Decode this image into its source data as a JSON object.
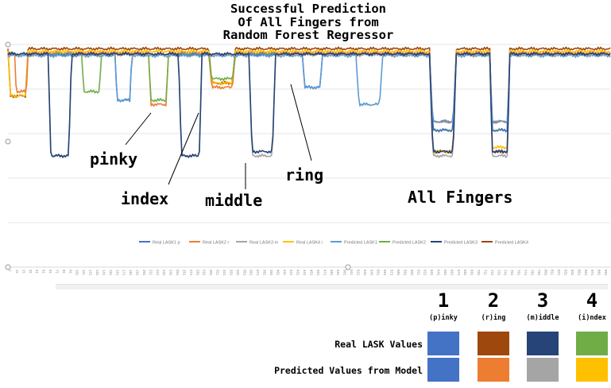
{
  "title_lines": [
    "Successful Prediction",
    "Of All Fingers from",
    "Random Forest Regressor"
  ],
  "annotations": {
    "pinky": "pinky",
    "index": "index",
    "middle": "middle",
    "ring": "ring",
    "all": "All Fingers"
  },
  "legend_table": {
    "columns": [
      {
        "num": "1",
        "sub": "(p)inky",
        "real": "#4472c4",
        "pred": "#4472c4"
      },
      {
        "num": "2",
        "sub": "(r)ing",
        "real": "#9e480e",
        "pred": "#ed7d31"
      },
      {
        "num": "3",
        "sub": "(m)iddle",
        "real": "#264478",
        "pred": "#a5a5a5"
      },
      {
        "num": "4",
        "sub": "(i)ndex",
        "real": "#70ad47",
        "pred": "#ffc000"
      }
    ],
    "row_real": "Real LASK Values",
    "row_pred": "Predicted Values from Model"
  },
  "chart_data": {
    "type": "line",
    "x_count": 901,
    "ylim": [
      0,
      260
    ],
    "grid": true,
    "legend_position": "bottom",
    "legend": [
      {
        "name": "Real LASK1 p",
        "color": "#4472c4"
      },
      {
        "name": "Real LASK2 r",
        "color": "#ed7d31"
      },
      {
        "name": "Real LASK3 m",
        "color": "#a5a5a5"
      },
      {
        "name": "Real LASK4 i",
        "color": "#ffc000"
      },
      {
        "name": "Predicted LASK1",
        "color": "#5b9bd5"
      },
      {
        "name": "Predicted LASK2",
        "color": "#70ad47"
      },
      {
        "name": "Predicted LASK3",
        "color": "#264478"
      },
      {
        "name": "Predicted LASK4",
        "color": "#9e480e"
      }
    ],
    "series": [
      {
        "name": "Predicted LASK4",
        "color": "#9e480e",
        "base": 255,
        "dips": [
          [
            0,
            30,
            200
          ],
          [
            300,
            340,
            215
          ],
          [
            630,
            670,
            135
          ],
          [
            720,
            750,
            135
          ]
        ]
      },
      {
        "name": "Real LASK4 i",
        "color": "#ffc000",
        "base": 252,
        "dips": [
          [
            0,
            30,
            200
          ],
          [
            300,
            340,
            215
          ],
          [
            630,
            670,
            135
          ],
          [
            720,
            750,
            140
          ]
        ]
      },
      {
        "name": "Real LASK2 r",
        "color": "#ed7d31",
        "base": 250,
        "dips": [
          [
            10,
            30,
            205
          ],
          [
            210,
            240,
            190
          ],
          [
            300,
            340,
            210
          ],
          [
            630,
            670,
            170
          ],
          [
            720,
            750,
            170
          ]
        ]
      },
      {
        "name": "Predicted LASK2",
        "color": "#70ad47",
        "base": 249,
        "dips": [
          [
            110,
            140,
            205
          ],
          [
            210,
            240,
            195
          ],
          [
            300,
            340,
            220
          ],
          [
            630,
            670,
            160
          ],
          [
            720,
            750,
            160
          ]
        ]
      },
      {
        "name": "Real LASK1 p",
        "color": "#4472c4",
        "base": 248,
        "dips": [
          [
            160,
            185,
            195
          ],
          [
            440,
            470,
            210
          ],
          [
            630,
            670,
            160
          ],
          [
            720,
            750,
            160
          ]
        ]
      },
      {
        "name": "Predicted LASK1",
        "color": "#5b9bd5",
        "base": 247,
        "dips": [
          [
            160,
            185,
            195
          ],
          [
            440,
            470,
            210
          ],
          [
            520,
            560,
            190
          ],
          [
            630,
            670,
            170
          ],
          [
            720,
            750,
            170
          ]
        ]
      },
      {
        "name": "Real LASK3 m",
        "color": "#a5a5a5",
        "base": 248,
        "dips": [
          [
            60,
            95,
            130
          ],
          [
            255,
            290,
            130
          ],
          [
            360,
            400,
            130
          ],
          [
            630,
            670,
            130
          ],
          [
            720,
            750,
            130
          ]
        ]
      },
      {
        "name": "Predicted LASK3",
        "color": "#264478",
        "base": 249,
        "dips": [
          [
            60,
            95,
            130
          ],
          [
            255,
            290,
            130
          ],
          [
            360,
            400,
            135
          ],
          [
            630,
            670,
            135
          ],
          [
            720,
            750,
            135
          ]
        ]
      }
    ]
  }
}
